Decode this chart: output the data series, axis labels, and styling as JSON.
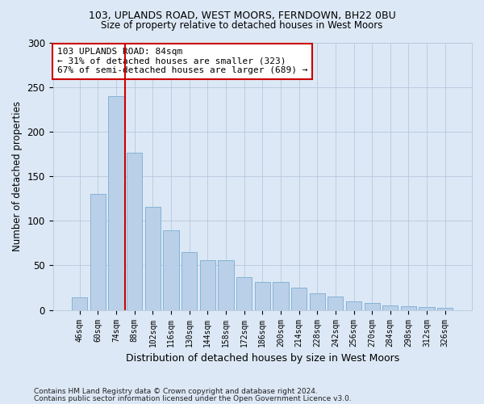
{
  "title1": "103, UPLANDS ROAD, WEST MOORS, FERNDOWN, BH22 0BU",
  "title2": "Size of property relative to detached houses in West Moors",
  "xlabel": "Distribution of detached houses by size in West Moors",
  "ylabel": "Number of detached properties",
  "categories": [
    "46sqm",
    "60sqm",
    "74sqm",
    "88sqm",
    "102sqm",
    "116sqm",
    "130sqm",
    "144sqm",
    "158sqm",
    "172sqm",
    "186sqm",
    "200sqm",
    "214sqm",
    "228sqm",
    "242sqm",
    "256sqm",
    "270sqm",
    "284sqm",
    "298sqm",
    "312sqm",
    "326sqm"
  ],
  "values": [
    14,
    130,
    240,
    176,
    116,
    89,
    65,
    56,
    56,
    37,
    31,
    31,
    25,
    19,
    15,
    10,
    8,
    5,
    4,
    3,
    2
  ],
  "bar_color": "#bad0e8",
  "bar_edge_color": "#7aadd4",
  "vline_color": "#cc0000",
  "vline_index": 2.5,
  "annotation_text": "103 UPLANDS ROAD: 84sqm\n← 31% of detached houses are smaller (323)\n67% of semi-detached houses are larger (689) →",
  "annotation_box_color": "#ffffff",
  "annotation_box_edge_color": "#cc0000",
  "footer1": "Contains HM Land Registry data © Crown copyright and database right 2024.",
  "footer2": "Contains public sector information licensed under the Open Government Licence v3.0.",
  "background_color": "#dce8f5",
  "ylim": [
    0,
    300
  ],
  "yticks": [
    0,
    50,
    100,
    150,
    200,
    250,
    300
  ]
}
